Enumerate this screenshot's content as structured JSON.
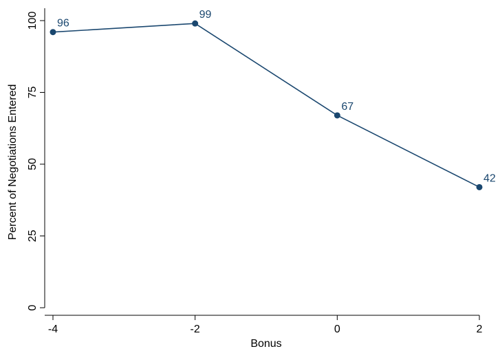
{
  "chart_data": {
    "type": "line",
    "title": "",
    "xlabel": "Bonus",
    "ylabel": "Percent of Negotiations Entered",
    "x": [
      -4,
      -2,
      0,
      2
    ],
    "x_ticks": [
      "-4",
      "-2",
      "0",
      "2"
    ],
    "y_ticks": [
      "0",
      "25",
      "50",
      "75",
      "100"
    ],
    "xlim": [
      -4,
      2
    ],
    "ylim": [
      0,
      100
    ],
    "grid": false,
    "series": [
      {
        "values": [
          96,
          99,
          67,
          42
        ],
        "data_labels": [
          "96",
          "99",
          "67",
          "42"
        ],
        "color": "#1a476f"
      }
    ]
  }
}
